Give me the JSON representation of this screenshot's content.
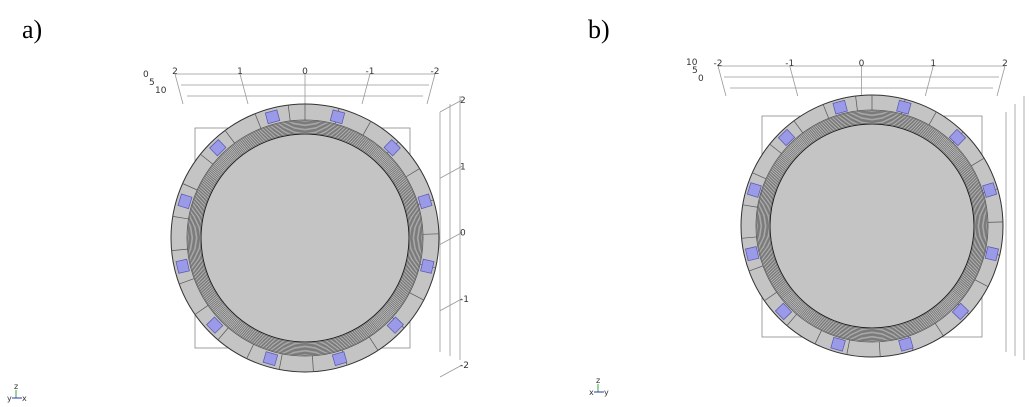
{
  "panels": [
    {
      "label": "a)",
      "top_ticks": [
        "2",
        "1",
        "0",
        "-1",
        "-2"
      ],
      "depth_ticks": [
        "0",
        "5",
        "10"
      ],
      "right_ticks": [
        "2",
        "1",
        "0",
        "-1",
        "-2"
      ],
      "triad": [
        "z",
        "y",
        "x"
      ]
    },
    {
      "label": "b)",
      "top_ticks": [
        "-2",
        "-1",
        "0",
        "1",
        "2"
      ],
      "depth_ticks": [
        "10",
        "5",
        "0"
      ],
      "triad": [
        "z",
        "x",
        "y"
      ]
    }
  ]
}
